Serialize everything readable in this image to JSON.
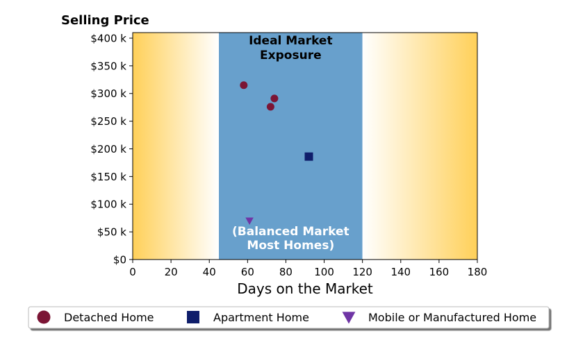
{
  "chart_data": {
    "type": "scatter",
    "title": "",
    "xlabel": "Days on the Market",
    "ylabel": "Selling Price",
    "xlim": [
      0,
      180
    ],
    "ylim": [
      0,
      410
    ],
    "x_ticks": [
      0,
      20,
      40,
      60,
      80,
      100,
      120,
      140,
      160,
      180
    ],
    "x_tick_labels": [
      "0",
      "20",
      "40",
      "60",
      "80",
      "100",
      "120",
      "140",
      "160",
      "180"
    ],
    "y_ticks": [
      0,
      50,
      100,
      150,
      200,
      250,
      300,
      350,
      400
    ],
    "y_tick_labels": [
      "$0",
      "$50 k",
      "$100 k",
      "$150 k",
      "$200 k",
      "$250 k",
      "$300 k",
      "$350 k",
      "$400 k"
    ],
    "y_unit": "$ thousands",
    "grid": false,
    "background_zones": [
      {
        "x_range": [
          0,
          45
        ],
        "fill": "gradient",
        "color_from": "#FFD059",
        "color_to": "#FFFFFF"
      },
      {
        "x_range": [
          45,
          120
        ],
        "fill": "solid",
        "color": "#68A0CC",
        "label_lines": [
          "Ideal Market",
          "Exposure"
        ],
        "sublabel_lines": [
          "(Balanced Market",
          "Most Homes)"
        ]
      },
      {
        "x_range": [
          120,
          180
        ],
        "fill": "gradient",
        "color_from": "#FFFFFF",
        "color_to": "#FFD059"
      }
    ],
    "series": [
      {
        "name": "Detached Home",
        "marker": "circle",
        "color": "#7B1535",
        "points": [
          {
            "x": 58,
            "y": 315
          },
          {
            "x": 72,
            "y": 276
          },
          {
            "x": 74,
            "y": 291
          }
        ]
      },
      {
        "name": "Apartment Home",
        "marker": "square",
        "color": "#0F1E6B",
        "points": [
          {
            "x": 92,
            "y": 186
          }
        ]
      },
      {
        "name": "Mobile or Manufactured Home",
        "marker": "triangle-down",
        "color": "#6F35A5",
        "points": [
          {
            "x": 61,
            "y": 70
          }
        ]
      }
    ],
    "legend_position": "bottom"
  }
}
